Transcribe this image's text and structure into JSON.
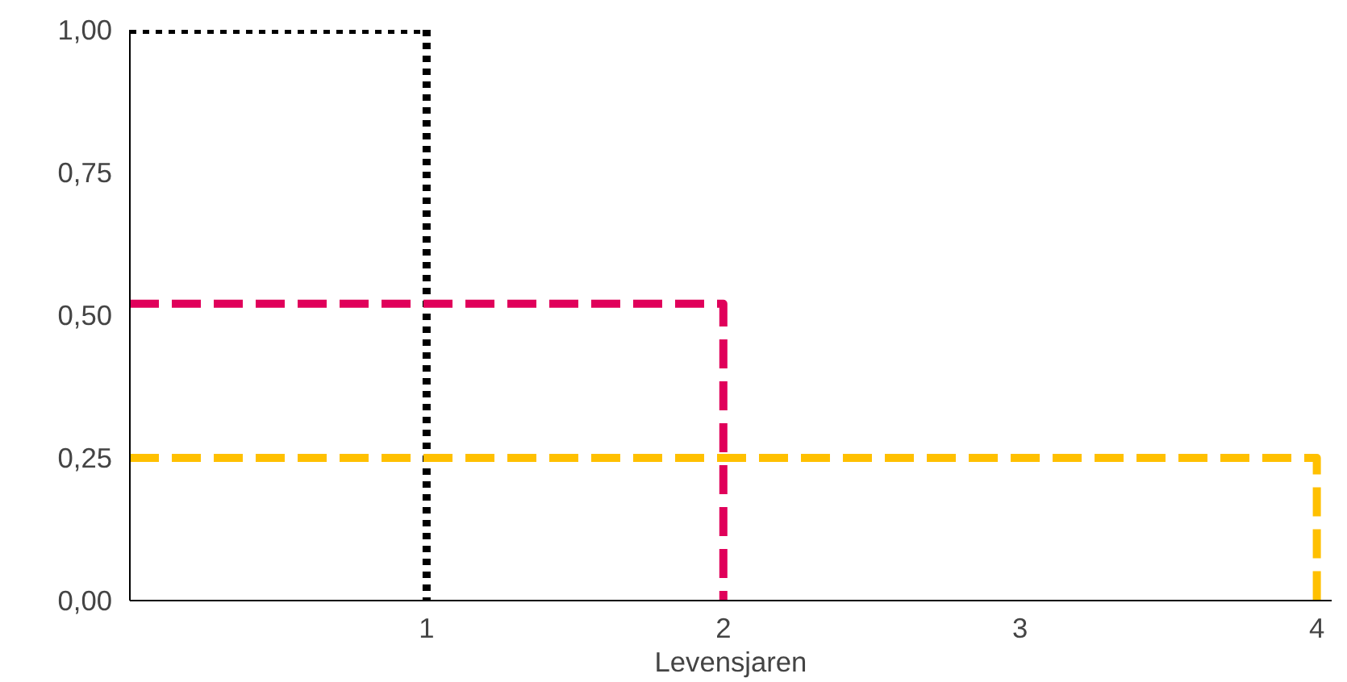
{
  "chart_data": {
    "type": "line",
    "xlabel": "Levensjaren",
    "xlim": [
      0,
      4.05
    ],
    "ylim": [
      0,
      1.0
    ],
    "xticks": [
      1,
      2,
      3,
      4
    ],
    "yticks": [
      {
        "value": 0,
        "label": "0,00"
      },
      {
        "value": 0.25,
        "label": "0,25"
      },
      {
        "value": 0.5,
        "label": "0,50"
      },
      {
        "value": 0.75,
        "label": "0,75"
      },
      {
        "value": 1,
        "label": "1,00"
      }
    ],
    "grid": false,
    "series": [
      {
        "color": "#000000",
        "line_style": "dotted",
        "x": [
          0,
          1,
          1
        ],
        "values": [
          1,
          1,
          0
        ]
      },
      {
        "color": "#e0005a",
        "line_style": "dashed",
        "x": [
          0,
          2,
          2
        ],
        "values": [
          0.52,
          0.52,
          0
        ]
      },
      {
        "color": "#ffc000",
        "line_style": "dashed",
        "x": [
          0,
          4,
          4
        ],
        "values": [
          0.25,
          0.25,
          0
        ]
      }
    ]
  }
}
